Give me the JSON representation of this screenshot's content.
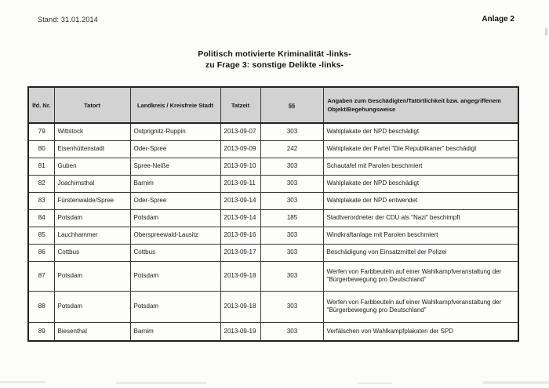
{
  "page": {
    "stand_label": "Stand: 31.01.2014",
    "anlage_label": "Anlage 2",
    "title_line1": "Politisch motivierte Kriminalität -links-",
    "title_line2": "zu Frage 3: sonstige Delikte -links-"
  },
  "table": {
    "columns": [
      "lfd. Nr.",
      "Tatort",
      "Landkreis / Kreisfreie Stadt",
      "Tatzeit",
      "§§",
      "Angaben zum Geschädigten/Tatörtlichkeit bzw. angegriffenem Objekt/Begehungsweise"
    ],
    "rows": [
      {
        "nr": "79",
        "tatort": "Wittstock",
        "landkreis": "Ostprignitz-Ruppin",
        "tatzeit": "2013-09-07",
        "par": "303",
        "angaben": "Wahlplakate der NPD beschädigt"
      },
      {
        "nr": "80",
        "tatort": "Eisenhüttenstadt",
        "landkreis": "Oder-Spree",
        "tatzeit": "2013-09-09",
        "par": "242",
        "angaben": "Wahlplakate der Partei \"Die Republikaner\" beschädigt"
      },
      {
        "nr": "81",
        "tatort": "Guben",
        "landkreis": "Spree-Neiße",
        "tatzeit": "2013-09-10",
        "par": "303",
        "angaben": "Schautafel mit Parolen beschmiert"
      },
      {
        "nr": "82",
        "tatort": "Joachimsthal",
        "landkreis": "Barnim",
        "tatzeit": "2013-09-11",
        "par": "303",
        "angaben": "Wahlplakate der NPD beschädigt"
      },
      {
        "nr": "83",
        "tatort": "Fürstenwalde/Spree",
        "landkreis": "Oder-Spree",
        "tatzeit": "2013-09-14",
        "par": "303",
        "angaben": "Wahlplakate der NPD entwendet"
      },
      {
        "nr": "84",
        "tatort": "Potsdam",
        "landkreis": "Potsdam",
        "tatzeit": "2013-09-14",
        "par": "185",
        "angaben": "Stadtverordneter der CDU als \"Nazi\" beschimpft"
      },
      {
        "nr": "85",
        "tatort": "Lauchhammer",
        "landkreis": "Oberspreewald-Lausitz",
        "tatzeit": "2013-09-16",
        "par": "303",
        "angaben": "Windkraftanlage mit Parolen beschmiert"
      },
      {
        "nr": "86",
        "tatort": "Cottbus",
        "landkreis": "Cottbus",
        "tatzeit": "2013-09-17",
        "par": "303",
        "angaben": "Beschädigung von Einsatzmittel der Polizei"
      },
      {
        "nr": "87",
        "tatort": "Potsdam",
        "landkreis": "Potsdam",
        "tatzeit": "2013-09-18",
        "par": "303",
        "angaben": "Werfen von Farbbeuteln auf einer Wahlkampfveranstaltung der \"Bürgerbewegung pro Deutschland\""
      },
      {
        "nr": "88",
        "tatort": "Potsdam",
        "landkreis": "Potsdam",
        "tatzeit": "2013-09-18",
        "par": "303",
        "angaben": "Werfen von Farbbeuteln auf einer Wahlkampfveranstaltung der \"Bürgerbewegung pro Deutschland\""
      },
      {
        "nr": "89",
        "tatort": "Biesenthal",
        "landkreis": "Barnim",
        "tatzeit": "2013-09-19",
        "par": "303",
        "angaben": "Verfälschen von Wahlkampfplakaten der SPD"
      }
    ]
  },
  "colors": {
    "header_bg": "#d2d2d2",
    "border": "#3a3a3a",
    "text": "#1b1b1b",
    "paper": "#fcfcfb"
  }
}
